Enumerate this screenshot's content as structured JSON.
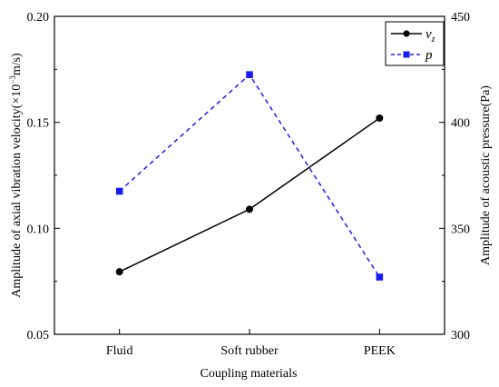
{
  "chart_data": {
    "type": "line",
    "categories": [
      "Fluid",
      "Soft rubber",
      "PEEK"
    ],
    "xlabel": "Coupling materials",
    "ylabel_left_prefix": "Amplitude of axial vibration velocity(",
    "ylabel_left_times": "×10",
    "ylabel_left_exp": "−3",
    "ylabel_left_suffix": "m/s)",
    "ylabel_right": "Amplitude of acoustic pressure(Pa)",
    "y_left": {
      "min": 0.05,
      "max": 0.2,
      "ticks": [
        0.05,
        0.1,
        0.15,
        0.2
      ],
      "tick_labels": [
        "0.05",
        "0.10",
        "0.15",
        "0.20"
      ]
    },
    "y_right": {
      "min": 300,
      "max": 450,
      "ticks": [
        300,
        350,
        400,
        450
      ],
      "tick_labels": [
        "300",
        "350",
        "400",
        "450"
      ]
    },
    "series": [
      {
        "name": "v",
        "name_sub": "z",
        "axis": "left",
        "values": [
          0.0795,
          0.109,
          0.152
        ],
        "color": "#000000",
        "dash": "solid",
        "marker": "circle"
      },
      {
        "name": "p",
        "axis": "right",
        "values": [
          367.5,
          422.5,
          327
        ],
        "color": "#1a1aff",
        "dash": "dashed",
        "marker": "square"
      }
    ],
    "legend_position": "top-right",
    "grid": false
  }
}
